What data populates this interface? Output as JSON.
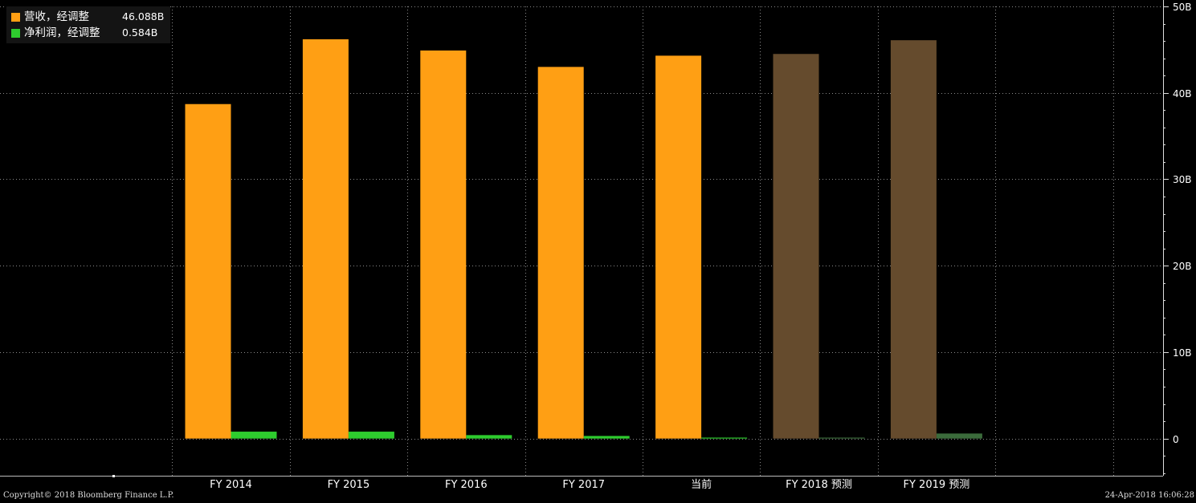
{
  "legend": {
    "items": [
      {
        "name": "营收，经调整",
        "value": "46.088B",
        "color": "#FF9F14"
      },
      {
        "name": "净利润，经调整",
        "value": "0.584B",
        "color": "#2ECC2E"
      }
    ]
  },
  "footer": {
    "copyright": "Copyright© 2018 Bloomberg Finance L.P.",
    "timestamp": "24-Apr-2018 16:06:28"
  },
  "chart_data": {
    "type": "bar",
    "categories": [
      "FY 2014",
      "FY 2015",
      "FY 2016",
      "FY 2017",
      "当前",
      "FY 2018 预测",
      "FY 2019 预测"
    ],
    "series": [
      {
        "name": "营收，经调整",
        "values": [
          38.7,
          46.2,
          44.9,
          43.0,
          44.3,
          44.5,
          46.088
        ],
        "color": "#FF9F14",
        "forecast_color": "#654B2D"
      },
      {
        "name": "净利润，经调整",
        "values": [
          0.8,
          0.8,
          0.4,
          0.3,
          0.02,
          0.05,
          0.584
        ],
        "color": "#2ECC2E",
        "forecast_color": "#3B6B3B"
      }
    ],
    "forecast_categories": [
      "FY 2018 预测",
      "FY 2019 预测"
    ],
    "ylim": [
      -4.3,
      50
    ],
    "yticks": [
      0,
      10,
      20,
      30,
      40,
      50
    ],
    "ytick_labels": [
      "0",
      "10B",
      "20B",
      "30B",
      "40B",
      "50B"
    ],
    "y_axis_side": "right",
    "grid": true,
    "legend_position": "top-left"
  }
}
